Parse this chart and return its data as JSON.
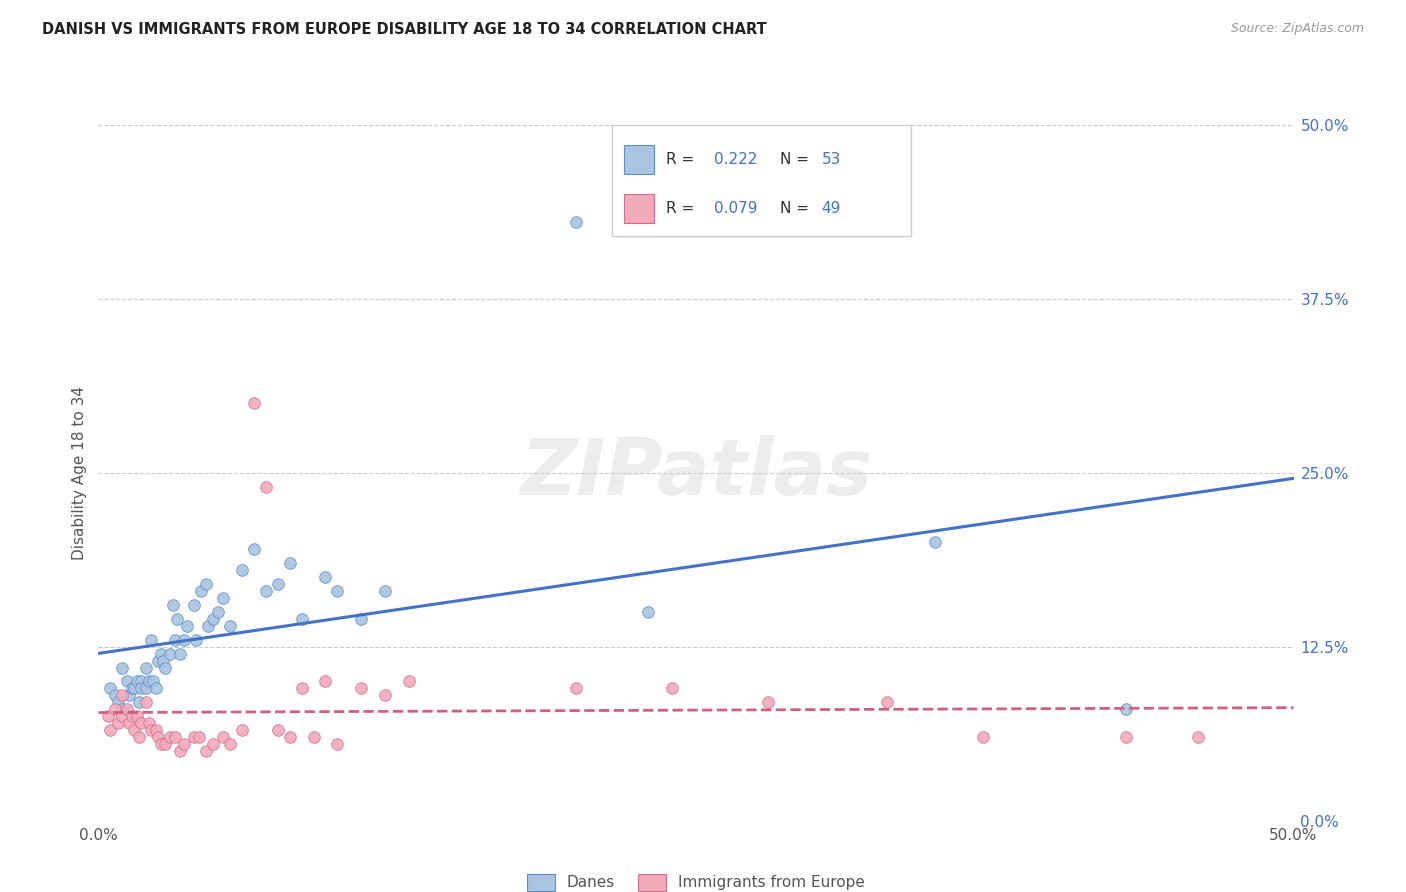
{
  "title": "DANISH VS IMMIGRANTS FROM EUROPE DISABILITY AGE 18 TO 34 CORRELATION CHART",
  "source": "Source: ZipAtlas.com",
  "ylabel": "Disability Age 18 to 34",
  "xlim": [
    0.0,
    0.5
  ],
  "ylim": [
    0.0,
    0.5
  ],
  "ytick_positions": [
    0.0,
    0.125,
    0.25,
    0.375,
    0.5
  ],
  "ytick_labels": [
    "0.0%",
    "12.5%",
    "25.0%",
    "37.5%",
    "50.0%"
  ],
  "legend_R_blue": "0.222",
  "legend_N_blue": "53",
  "legend_R_pink": "0.079",
  "legend_N_pink": "49",
  "legend_label_blue": "Danes",
  "legend_label_pink": "Immigrants from Europe",
  "blue_scatter_color": "#aac4e2",
  "blue_edge_color": "#5b8fcc",
  "pink_scatter_color": "#f2aabb",
  "pink_edge_color": "#d07090",
  "line_blue_color": "#4472c4",
  "line_pink_color": "#d06080",
  "danes_x": [
    0.005,
    0.007,
    0.008,
    0.01,
    0.01,
    0.012,
    0.013,
    0.014,
    0.015,
    0.016,
    0.017,
    0.018,
    0.018,
    0.02,
    0.02,
    0.021,
    0.022,
    0.023,
    0.024,
    0.025,
    0.026,
    0.027,
    0.028,
    0.03,
    0.031,
    0.032,
    0.033,
    0.034,
    0.036,
    0.037,
    0.04,
    0.041,
    0.043,
    0.045,
    0.046,
    0.048,
    0.05,
    0.052,
    0.055,
    0.06,
    0.065,
    0.07,
    0.075,
    0.08,
    0.085,
    0.095,
    0.1,
    0.11,
    0.12,
    0.2,
    0.23,
    0.35,
    0.43
  ],
  "danes_y": [
    0.095,
    0.09,
    0.085,
    0.11,
    0.08,
    0.1,
    0.09,
    0.095,
    0.095,
    0.1,
    0.085,
    0.1,
    0.095,
    0.11,
    0.095,
    0.1,
    0.13,
    0.1,
    0.095,
    0.115,
    0.12,
    0.115,
    0.11,
    0.12,
    0.155,
    0.13,
    0.145,
    0.12,
    0.13,
    0.14,
    0.155,
    0.13,
    0.165,
    0.17,
    0.14,
    0.145,
    0.15,
    0.16,
    0.14,
    0.18,
    0.195,
    0.165,
    0.17,
    0.185,
    0.145,
    0.175,
    0.165,
    0.145,
    0.165,
    0.43,
    0.15,
    0.2,
    0.08
  ],
  "immigrants_x": [
    0.004,
    0.005,
    0.007,
    0.008,
    0.01,
    0.01,
    0.012,
    0.013,
    0.014,
    0.015,
    0.016,
    0.017,
    0.018,
    0.02,
    0.021,
    0.022,
    0.024,
    0.025,
    0.026,
    0.028,
    0.03,
    0.032,
    0.034,
    0.036,
    0.04,
    0.042,
    0.045,
    0.048,
    0.052,
    0.055,
    0.06,
    0.065,
    0.07,
    0.075,
    0.08,
    0.085,
    0.09,
    0.095,
    0.1,
    0.11,
    0.12,
    0.13,
    0.2,
    0.24,
    0.28,
    0.33,
    0.37,
    0.43,
    0.46
  ],
  "immigrants_y": [
    0.075,
    0.065,
    0.08,
    0.07,
    0.09,
    0.075,
    0.08,
    0.07,
    0.075,
    0.065,
    0.075,
    0.06,
    0.07,
    0.085,
    0.07,
    0.065,
    0.065,
    0.06,
    0.055,
    0.055,
    0.06,
    0.06,
    0.05,
    0.055,
    0.06,
    0.06,
    0.05,
    0.055,
    0.06,
    0.055,
    0.065,
    0.3,
    0.24,
    0.065,
    0.06,
    0.095,
    0.06,
    0.1,
    0.055,
    0.095,
    0.09,
    0.1,
    0.095,
    0.095,
    0.085,
    0.085,
    0.06,
    0.06,
    0.06
  ],
  "watermark_text": "ZIPatlas",
  "watermark_fontsize": 56
}
